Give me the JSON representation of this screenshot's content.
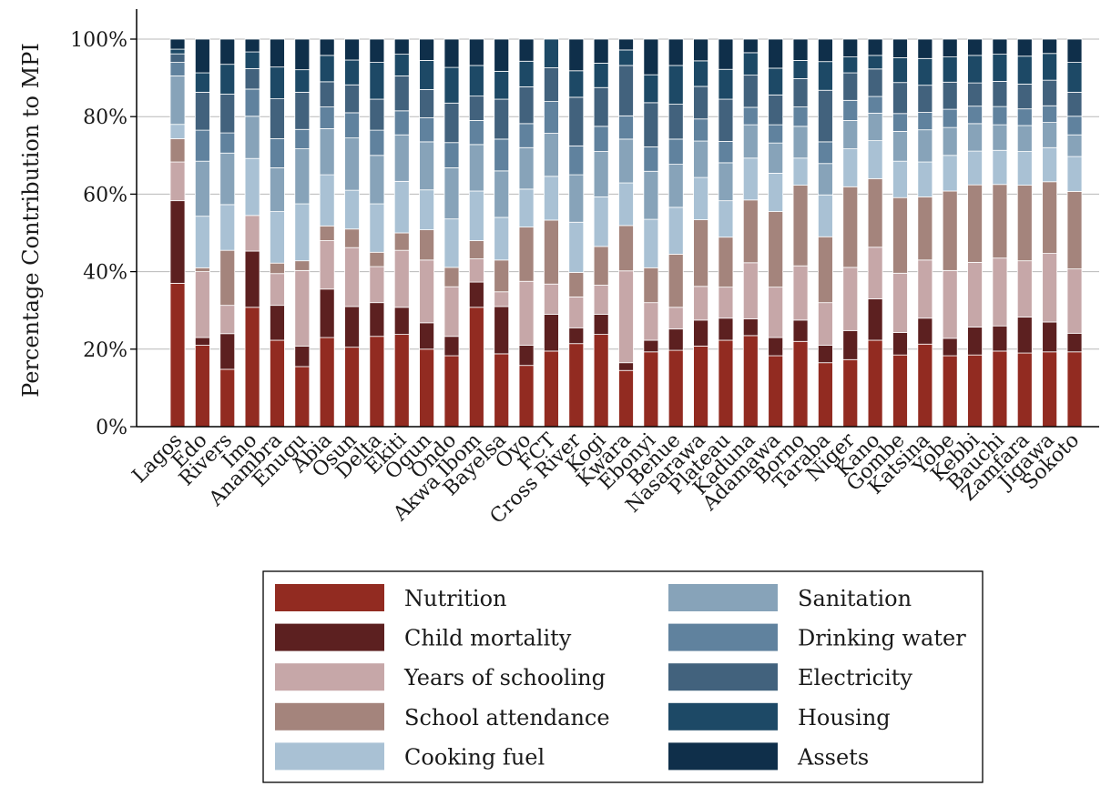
{
  "chart_data": {
    "type": "bar",
    "stacked": true,
    "ylabel": "Percentage Contribution to MPI",
    "xlabel": "",
    "ylim": [
      0,
      100
    ],
    "yticks": [
      0,
      20,
      40,
      60,
      80,
      100
    ],
    "ytick_labels": [
      "0%",
      "20%",
      "40%",
      "60%",
      "80%",
      "100%"
    ],
    "grid": "horizontal",
    "legend_position": "bottom",
    "legend_columns": 2,
    "categories": [
      "Lagos",
      "Edo",
      "Rivers",
      "Imo",
      "Anambra",
      "Enugu",
      "Abia",
      "Osun",
      "Delta",
      "Ekiti",
      "Ogun",
      "Ondo",
      "Akwa Ibom",
      "Bayelsa",
      "Oyo",
      "FCT",
      "Cross River",
      "Kogi",
      "Kwara",
      "Ebonyi",
      "Benue",
      "Nasarawa",
      "Plateau",
      "Kaduna",
      "Adamawa",
      "Borno",
      "Taraba",
      "Niger",
      "Kano",
      "Gombe",
      "Katsina",
      "Yobe",
      "Kebbi",
      "Bauchi",
      "Zamfara",
      "Jigawa",
      "Sokoto"
    ],
    "series": [
      {
        "name": "Nutrition",
        "color": "#922b21",
        "values": [
          37,
          21,
          14.8,
          30.8,
          22.3,
          15.5,
          23,
          20.5,
          23.3,
          23.8,
          20,
          18.3,
          30.8,
          18.8,
          15.8,
          19.5,
          21,
          23.8,
          14.5,
          19.3,
          19.7,
          20.8,
          22.3,
          23.5,
          18.3,
          22,
          16.5,
          17.3,
          22.3,
          18.5,
          21.3,
          18.3,
          18.5,
          19.5,
          19,
          19.3,
          19.3
        ]
      },
      {
        "name": "Child mortality",
        "color": "#5c2020",
        "values": [
          21.3,
          2,
          9.2,
          14.5,
          9,
          5.3,
          12.5,
          10.5,
          8.7,
          7,
          6.8,
          5,
          6.5,
          12.2,
          5.2,
          9.5,
          4,
          5.2,
          2,
          3,
          5.5,
          6.7,
          5.7,
          4.3,
          4.7,
          5.5,
          4.5,
          7.5,
          10.7,
          5.8,
          6.7,
          4.5,
          7.2,
          6.5,
          9.3,
          7.7,
          4.8
        ]
      },
      {
        "name": "Years of schooling",
        "color": "#c6a7a8",
        "values": [
          10,
          17,
          7.3,
          9.2,
          8.2,
          19.5,
          12.5,
          15.2,
          9.3,
          14.7,
          16.2,
          12.8,
          6,
          3.8,
          16.5,
          7.8,
          7.8,
          7.5,
          23.7,
          9.7,
          5.6,
          8.7,
          8,
          14.5,
          13,
          14,
          11,
          16.3,
          13.3,
          15.3,
          15,
          17.5,
          16.7,
          17.5,
          14.5,
          17.7,
          16.6
        ]
      },
      {
        "name": "School attendance",
        "color": "#a4847c",
        "values": [
          6,
          1,
          14.2,
          0,
          2.7,
          2.5,
          3.8,
          4.8,
          3.7,
          4.5,
          7.8,
          5,
          4.7,
          8.2,
          14,
          16.5,
          6.2,
          10,
          11.7,
          9,
          13.7,
          17.2,
          12.9,
          16.2,
          19.5,
          20.8,
          17,
          20.8,
          17.7,
          19.5,
          16.3,
          20.5,
          20,
          19,
          19.5,
          18.5,
          20
        ]
      },
      {
        "name": "Cooking fuel",
        "color": "#a9c1d4",
        "values": [
          3.7,
          13.3,
          11.8,
          14.7,
          13.3,
          14.7,
          13.2,
          10,
          12.5,
          13.3,
          10.3,
          12.5,
          12.8,
          11,
          9.8,
          11.3,
          12.7,
          12.8,
          11,
          12.5,
          12.1,
          10.9,
          9.4,
          10.8,
          9.9,
          7,
          10.8,
          9.8,
          9.8,
          9.4,
          9,
          9.2,
          8.7,
          8.8,
          8.7,
          8.8,
          9
        ]
      },
      {
        "name": "Sanitation",
        "color": "#87a3b9",
        "values": [
          12.5,
          14.2,
          13.3,
          10.9,
          11.3,
          14.2,
          11.9,
          13.5,
          12.5,
          12,
          12.4,
          13.2,
          12,
          12,
          10.7,
          11.1,
          12,
          11.7,
          11.3,
          12.4,
          11.1,
          9.4,
          9.8,
          8.6,
          7.8,
          8.2,
          8.1,
          7.3,
          7.1,
          7.7,
          8.3,
          7.2,
          7.1,
          6.6,
          6.7,
          6.5,
          5.6
        ]
      },
      {
        "name": "Drinking water",
        "color": "#60829e",
        "values": [
          3.5,
          8,
          5.2,
          7,
          7.5,
          5,
          5.6,
          6.5,
          6.5,
          6.2,
          6.2,
          6.5,
          6.2,
          8.2,
          6.2,
          8.2,
          7.3,
          6.5,
          6,
          6.3,
          6.5,
          5.7,
          5.5,
          4.5,
          4.7,
          5,
          5.6,
          5.2,
          4.3,
          4.6,
          4.5,
          4.7,
          4.5,
          4.7,
          4.3,
          4.3,
          4.8
        ]
      },
      {
        "name": "Electricity",
        "color": "#42627d",
        "values": [
          2.2,
          9.8,
          10,
          5.3,
          10.3,
          9.6,
          6.5,
          7.2,
          8,
          9,
          7.3,
          10.2,
          6.3,
          10.3,
          9.5,
          8.7,
          12.3,
          10,
          13,
          11.4,
          9,
          8.4,
          10.9,
          8.3,
          7.7,
          7.3,
          13.3,
          7.1,
          7.1,
          8,
          7,
          7,
          6,
          6.5,
          6.4,
          6.6,
          6.2
        ]
      },
      {
        "name": "Housing",
        "color": "#1d4966",
        "values": [
          1.2,
          5,
          7.7,
          4.3,
          8.2,
          5.8,
          6.8,
          6.4,
          9.5,
          5.6,
          7.5,
          9.2,
          7.9,
          7.2,
          6.6,
          7.4,
          6.7,
          6.3,
          4,
          7.2,
          10,
          6.6,
          7.7,
          5.8,
          6.9,
          4.7,
          7.4,
          4.1,
          3.5,
          6.4,
          6.9,
          6.5,
          7.1,
          7,
          7.2,
          6.9,
          7.7
        ]
      },
      {
        "name": "Assets",
        "color": "#0f2f4a",
        "values": [
          2.6,
          8.7,
          6.5,
          3.3,
          7.2,
          7.9,
          4.2,
          5.4,
          6,
          3.9,
          5.5,
          7.3,
          6.8,
          8.3,
          5.7,
          0,
          8,
          6.2,
          2.8,
          9.2,
          6.8,
          5.6,
          7.8,
          3.5,
          7.5,
          5.5,
          5.8,
          4.6,
          4.2,
          4.8,
          5,
          4.6,
          4.2,
          3.9,
          4.4,
          3.7,
          6
        ]
      }
    ]
  }
}
